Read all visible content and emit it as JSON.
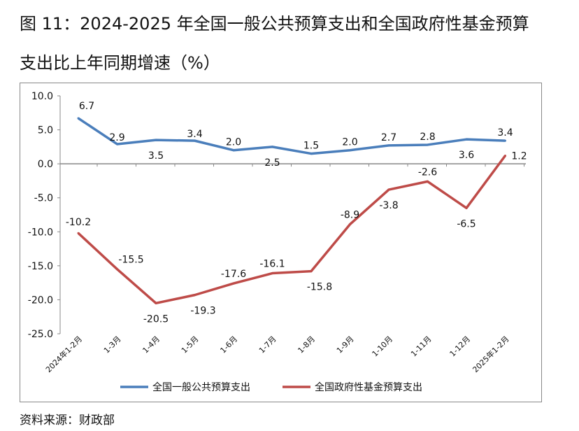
{
  "title_line1": "图 11：2024-2025 年全国一般公共预算支出和全国政府性基金预算",
  "title_line2": "支出比上年同期增速（%）",
  "source": "资料来源：财政部",
  "chart_data": {
    "type": "line",
    "title": "图 11：2024-2025 年全国一般公共预算支出和全国政府性基金预算支出比上年同期增速（%）",
    "categories": [
      "2024年1-2月",
      "1-3月",
      "1-4月",
      "1-5月",
      "1-6月",
      "1-7月",
      "1-8月",
      "1-9月",
      "1-10月",
      "1-11月",
      "1-12月",
      "2025年1-2月"
    ],
    "ylim": [
      -25,
      10
    ],
    "yticks": [
      "10.0",
      "5.0",
      "0.0",
      "-5.0",
      "-10.0",
      "-15.0",
      "-20.0",
      "-25.0"
    ],
    "ytick_values": [
      10,
      5,
      0,
      -5,
      -10,
      -15,
      -20,
      -25
    ],
    "legend_position": "bottom",
    "series": [
      {
        "name": "全国一般公共预算支出",
        "color": "#4a7ebb",
        "values": [
          6.7,
          2.9,
          3.5,
          3.4,
          2.0,
          2.5,
          1.5,
          2.0,
          2.7,
          2.8,
          3.6,
          3.4
        ],
        "labels": [
          "6.7",
          "2.9",
          "3.5",
          "3.4",
          "2.0",
          "2.5",
          "1.5",
          "2.0",
          "2.7",
          "2.8",
          "3.6",
          "3.4"
        ]
      },
      {
        "name": "全国政府性基金预算支出",
        "color": "#be4b48",
        "values": [
          -10.2,
          -15.5,
          -20.5,
          -19.3,
          -17.6,
          -16.1,
          -15.8,
          -8.9,
          -3.8,
          -2.6,
          -6.5,
          1.2
        ],
        "labels": [
          "-10.2",
          "-15.5",
          "-20.5",
          "-19.3",
          "-17.6",
          "-16.1",
          "-15.8",
          "-8.9",
          "-3.8",
          "-2.6",
          "-6.5",
          "1.2"
        ]
      }
    ]
  }
}
